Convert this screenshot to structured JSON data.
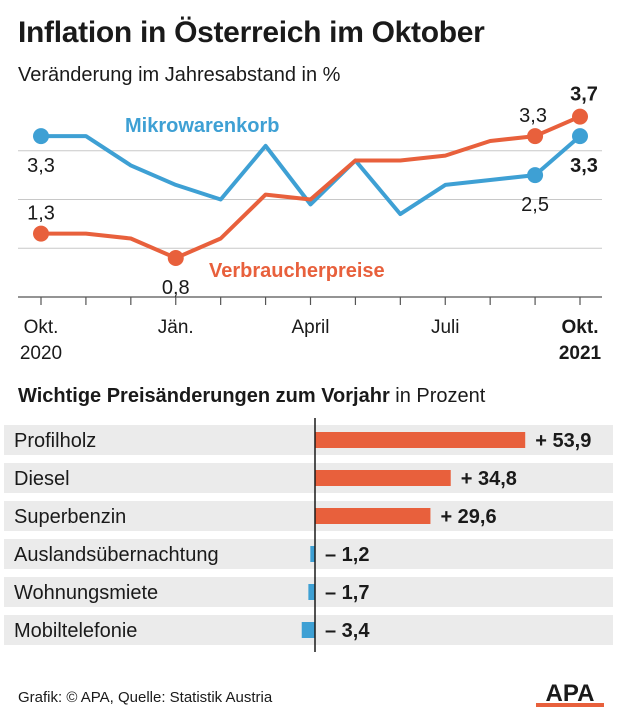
{
  "title": "Inflation in Österreich im Oktober",
  "subtitle": "Veränderung im Jahresabstand in %",
  "colors": {
    "verbraucherpreise": "#e8603c",
    "mikrowarenkorb": "#3ea0d4",
    "grid": "#c8c8c8",
    "row_bg": "#ebebeb",
    "text": "#1a1a1a"
  },
  "chart_data": [
    {
      "type": "line",
      "title": "Inflation in Österreich im Oktober",
      "subtitle": "Veränderung im Jahresabstand in %",
      "x_ticks": [
        {
          "index": 0,
          "line1": "Okt.",
          "line2": "2020",
          "bold": false
        },
        {
          "index": 3,
          "line1": "Jän.",
          "line2": "",
          "bold": false
        },
        {
          "index": 6,
          "line1": "April",
          "line2": "",
          "bold": false
        },
        {
          "index": 9,
          "line1": "Juli",
          "line2": "",
          "bold": false
        },
        {
          "index": 12,
          "line1": "Okt.",
          "line2": "2021",
          "bold": true
        }
      ],
      "ylim": [
        0,
        4.0
      ],
      "y_gridlines": [
        1,
        2,
        3
      ],
      "grid": true,
      "series": [
        {
          "name": "Mikrowarenkorb",
          "color": "#3ea0d4",
          "values": [
            3.3,
            3.3,
            2.7,
            2.3,
            2.0,
            3.1,
            1.9,
            2.8,
            1.7,
            2.3,
            2.4,
            2.5,
            3.3
          ],
          "labels": [
            {
              "index": 0,
              "text": "3,3",
              "bold": false
            },
            {
              "index": 11,
              "text": "2,5",
              "bold": false
            },
            {
              "index": 12,
              "text": "3,3",
              "bold": true
            }
          ]
        },
        {
          "name": "Verbraucherpreise",
          "color": "#e8603c",
          "values": [
            1.3,
            1.3,
            1.2,
            0.8,
            1.2,
            2.1,
            2.0,
            2.8,
            2.8,
            2.9,
            3.2,
            3.3,
            3.7
          ],
          "labels": [
            {
              "index": 0,
              "text": "1,3",
              "bold": false
            },
            {
              "index": 3,
              "text": "0,8",
              "bold": false
            },
            {
              "index": 11,
              "text": "3,3",
              "bold": false
            },
            {
              "index": 12,
              "text": "3,7",
              "bold": true
            }
          ]
        }
      ]
    },
    {
      "type": "bar",
      "title": "Wichtige Preisänderungen zum Vorjahr in Prozent",
      "categories": [
        "Profilholz",
        "Diesel",
        "Superbenzin",
        "Auslandsübernachtung",
        "Wohnungsmiete",
        "Mobiltelefonie"
      ],
      "values": [
        53.9,
        34.8,
        29.6,
        -1.2,
        -1.7,
        -3.4
      ],
      "value_labels": [
        "+ 53,9",
        "+ 34,8",
        "+ 29,6",
        "– 1,2",
        "– 1,7",
        "– 3,4"
      ],
      "positive_color": "#e8603c",
      "negative_color": "#3ea0d4"
    }
  ],
  "bars_heading": {
    "bold": "Wichtige Preisänderungen zum Vorjahr",
    "normal": " in Prozent"
  },
  "footer": "Grafik: © APA, Quelle: Statistik Austria",
  "logo_text": "APA"
}
